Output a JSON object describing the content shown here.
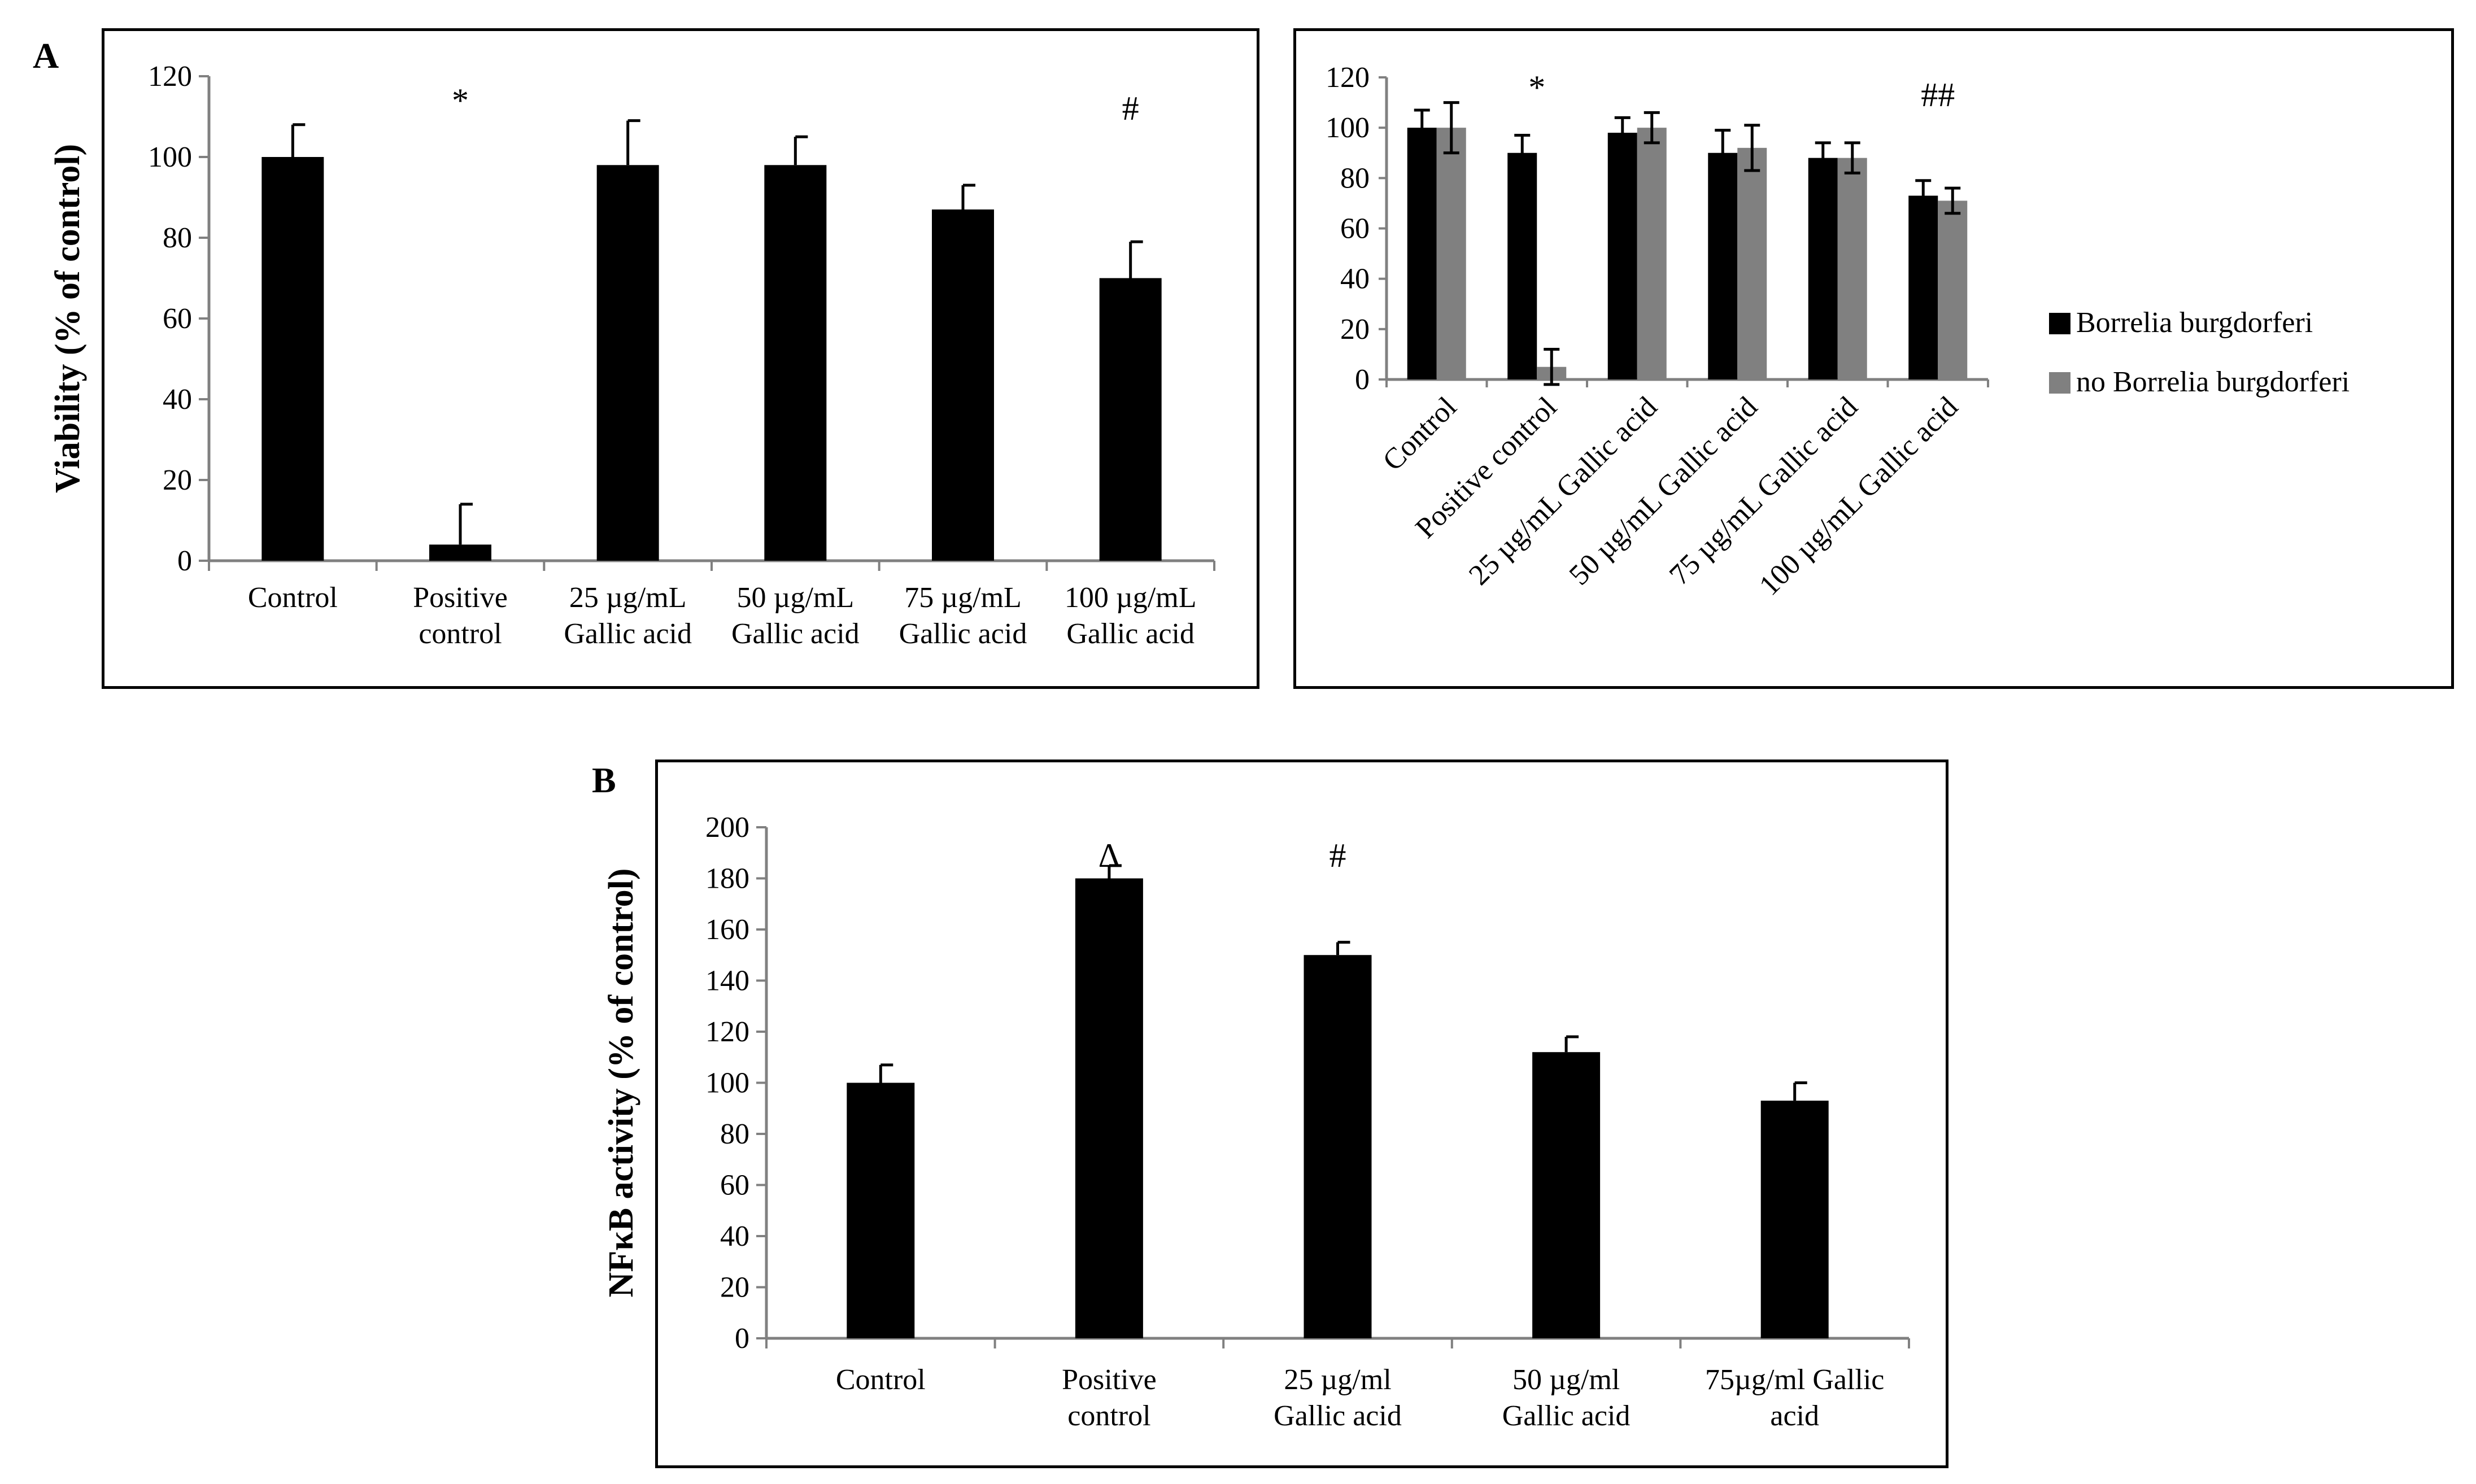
{
  "panels": {
    "a": "A",
    "b": "B"
  },
  "chart_data": [
    {
      "id": "A-left",
      "type": "bar",
      "categories": [
        [
          "Control"
        ],
        [
          "Positive",
          "control"
        ],
        [
          "25 µg/mL",
          "Gallic acid"
        ],
        [
          "50 µg/mL",
          "Gallic acid"
        ],
        [
          "75 µg/mL",
          "Gallic acid"
        ],
        [
          "100 µg/mL",
          "Gallic acid"
        ]
      ],
      "values": [
        100,
        4,
        98,
        98,
        87,
        70
      ],
      "errors": [
        8,
        10,
        11,
        7,
        6,
        9
      ],
      "ylabel": "Viability (% of control)",
      "ylim": [
        0,
        120
      ],
      "yticks": [
        0,
        20,
        40,
        60,
        80,
        100,
        120
      ],
      "annotations": [
        {
          "index": 1,
          "text": "*",
          "y": 114
        },
        {
          "index": 5,
          "text": "#",
          "y": 112
        }
      ],
      "bar_color": "#000000",
      "grid": false
    },
    {
      "id": "A-right",
      "type": "bar",
      "categories": [
        [
          "Control"
        ],
        [
          "Positive control"
        ],
        [
          "25 µg/mL Gallic acid"
        ],
        [
          "50 µg/mL Gallic acid"
        ],
        [
          "75 µg/mL Gallic acid"
        ],
        [
          "100 µg/mL Gallic acid"
        ]
      ],
      "series": [
        {
          "name": "Borrelia burgdorferi",
          "color": "#000000",
          "values": [
            100,
            90,
            98,
            90,
            88,
            73
          ],
          "errors": [
            7,
            7,
            6,
            9,
            6,
            6
          ]
        },
        {
          "name": "no Borrelia burgdorferi",
          "color": "#808080",
          "values": [
            100,
            5,
            100,
            92,
            88,
            71
          ],
          "errors": [
            10,
            7,
            6,
            9,
            6,
            5
          ]
        }
      ],
      "ylim": [
        0,
        120
      ],
      "yticks": [
        0,
        20,
        40,
        60,
        80,
        100,
        120
      ],
      "annotations": [
        {
          "index": 1,
          "text": "*",
          "y": 116
        },
        {
          "index": 5,
          "text": "##",
          "y": 113
        }
      ],
      "legend": "right",
      "grid": false
    },
    {
      "id": "B",
      "type": "bar",
      "categories": [
        [
          "Control"
        ],
        [
          "Positive",
          "control"
        ],
        [
          "25 µg/ml",
          "Gallic acid"
        ],
        [
          "50 µg/ml",
          "Gallic acid"
        ],
        [
          "75µg/ml Gallic",
          "acid"
        ]
      ],
      "values": [
        100,
        180,
        150,
        112,
        93
      ],
      "errors": [
        7,
        5,
        5,
        6,
        7
      ],
      "ylabel": "NFκB activity (% of control)",
      "ylim": [
        0,
        200
      ],
      "yticks": [
        0,
        20,
        40,
        60,
        80,
        100,
        120,
        140,
        160,
        180,
        200
      ],
      "annotations": [
        {
          "index": 1,
          "text": "Δ",
          "y": 189
        },
        {
          "index": 2,
          "text": "#",
          "y": 189
        }
      ],
      "bar_color": "#000000",
      "grid": false
    }
  ]
}
